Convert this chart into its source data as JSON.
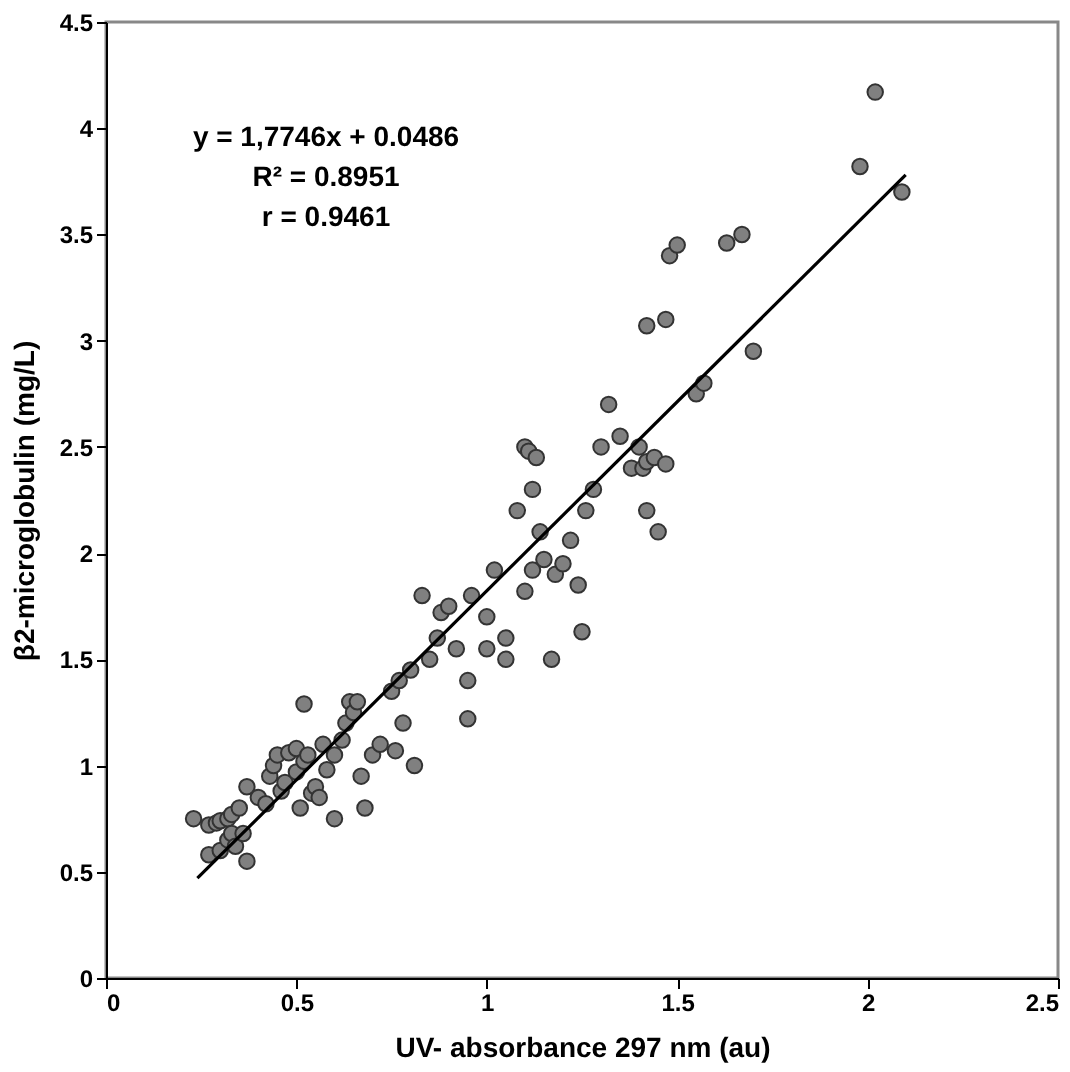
{
  "chart_data": {
    "type": "scatter",
    "xlabel": "UV- absorbance 297 nm (au)",
    "ylabel": "β2-microglobulin (mg/L)",
    "xlim": [
      0,
      2.5
    ],
    "xticks": [
      0,
      0.5,
      1,
      1.5,
      2,
      2.5
    ],
    "ylim": [
      0,
      4.5
    ],
    "yticks": [
      0,
      0.5,
      1,
      1.5,
      2,
      2.5,
      3,
      3.5,
      4,
      4.5
    ],
    "annotations": [
      "y = 1,7746x + 0.0486",
      "R² = 0.8951",
      "r = 0.9461"
    ],
    "series": [
      {
        "type": "scatter",
        "color": "#808080",
        "marker": "circle",
        "x": [
          0.23,
          0.27,
          0.29,
          0.3,
          0.32,
          0.33,
          0.35,
          0.27,
          0.3,
          0.32,
          0.33,
          0.34,
          0.36,
          0.37,
          0.37,
          0.4,
          0.42,
          0.43,
          0.44,
          0.45,
          0.46,
          0.47,
          0.48,
          0.5,
          0.5,
          0.51,
          0.52,
          0.53,
          0.54,
          0.55,
          0.56,
          0.57,
          0.58,
          0.6,
          0.62,
          0.63,
          0.64,
          0.65,
          0.66,
          0.67,
          0.7,
          0.72,
          0.75,
          0.77,
          0.78,
          0.8,
          0.81,
          0.83,
          0.52,
          0.6,
          0.68,
          0.76,
          0.85,
          0.87,
          0.88,
          0.9,
          0.92,
          0.95,
          0.95,
          0.96,
          1.0,
          1.02,
          1.05,
          1.05,
          1.08,
          1.1,
          1.11,
          1.12,
          1.13,
          1.14,
          1.15,
          1.17,
          1.18,
          1.2,
          1.22,
          1.24,
          1.26,
          1.28,
          1.3,
          1.32,
          1.25,
          1.35,
          1.38,
          1.4,
          1.41,
          1.42,
          1.42,
          1.44,
          1.45,
          1.47,
          1.42,
          1.47,
          1.48,
          1.5,
          1.55,
          1.57,
          1.63,
          1.67,
          1.7,
          1.98,
          2.02,
          2.09,
          1.1,
          1.0,
          1.12
        ],
        "values": [
          0.75,
          0.72,
          0.73,
          0.74,
          0.75,
          0.77,
          0.8,
          0.58,
          0.6,
          0.65,
          0.68,
          0.62,
          0.68,
          0.55,
          0.9,
          0.85,
          0.82,
          0.95,
          1.0,
          1.05,
          0.88,
          0.92,
          1.06,
          0.97,
          1.08,
          0.8,
          1.02,
          1.05,
          0.87,
          0.9,
          0.85,
          1.1,
          0.98,
          1.05,
          1.12,
          1.2,
          1.3,
          1.25,
          1.3,
          0.95,
          1.05,
          1.1,
          1.35,
          1.4,
          1.2,
          1.45,
          1.0,
          1.8,
          1.29,
          0.75,
          0.8,
          1.07,
          1.5,
          1.6,
          1.72,
          1.75,
          1.55,
          1.22,
          1.4,
          1.8,
          1.7,
          1.92,
          1.6,
          1.5,
          2.2,
          2.5,
          2.48,
          1.92,
          2.45,
          2.1,
          1.97,
          1.5,
          1.9,
          1.95,
          2.06,
          1.85,
          2.2,
          2.3,
          2.5,
          2.7,
          1.63,
          2.55,
          2.4,
          2.5,
          2.4,
          2.2,
          2.43,
          2.45,
          2.1,
          2.42,
          3.07,
          3.1,
          3.4,
          3.45,
          2.75,
          2.8,
          3.46,
          3.5,
          2.95,
          3.82,
          4.17,
          3.7,
          1.82,
          1.55,
          2.3
        ]
      },
      {
        "type": "line",
        "color": "#000000",
        "x": [
          0.24,
          2.1
        ],
        "values": [
          0.47,
          3.78
        ]
      }
    ]
  }
}
